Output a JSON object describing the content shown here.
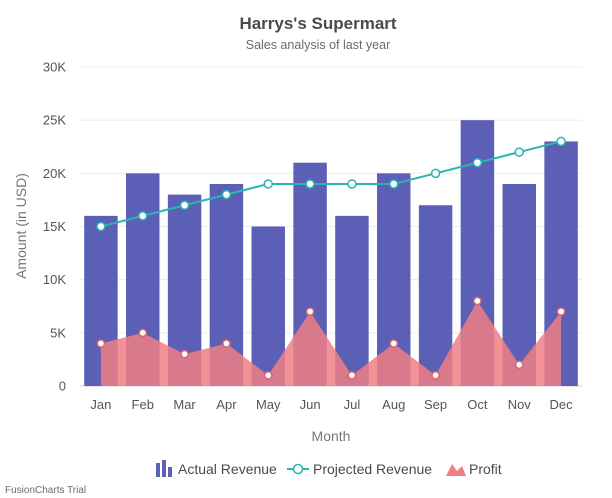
{
  "chart_data": {
    "type": "bar",
    "title": "Harrys's Supermart",
    "subtitle": "Sales analysis of last year",
    "xlabel": "Month",
    "ylabel": "Amount (in USD)",
    "ylim": [
      0,
      30000
    ],
    "y_ticks": [
      {
        "value": 0,
        "label": "0"
      },
      {
        "value": 5000,
        "label": "5K"
      },
      {
        "value": 10000,
        "label": "10K"
      },
      {
        "value": 15000,
        "label": "15K"
      },
      {
        "value": 20000,
        "label": "20K"
      },
      {
        "value": 25000,
        "label": "25K"
      },
      {
        "value": 30000,
        "label": "30K"
      }
    ],
    "grid": true,
    "legend_position": "bottom",
    "categories": [
      "Jan",
      "Feb",
      "Mar",
      "Apr",
      "May",
      "Jun",
      "Jul",
      "Aug",
      "Sep",
      "Oct",
      "Nov",
      "Dec"
    ],
    "series": [
      {
        "name": "Actual Revenue",
        "type": "bar",
        "color": "#5b5fb6",
        "values": [
          16000,
          20000,
          18000,
          19000,
          15000,
          21000,
          16000,
          20000,
          17000,
          25000,
          19000,
          23000
        ]
      },
      {
        "name": "Projected Revenue",
        "type": "line",
        "color": "#29b6b0",
        "values": [
          15000,
          16000,
          17000,
          18000,
          19000,
          19000,
          19000,
          19000,
          20000,
          21000,
          22000,
          23000
        ]
      },
      {
        "name": "Profit",
        "type": "area",
        "color": "#f07f85",
        "values": [
          4000,
          5000,
          3000,
          4000,
          1000,
          7000,
          1000,
          4000,
          1000,
          8000,
          2000,
          7000
        ]
      }
    ]
  },
  "footer": {
    "trial_text": "FusionCharts Trial"
  }
}
